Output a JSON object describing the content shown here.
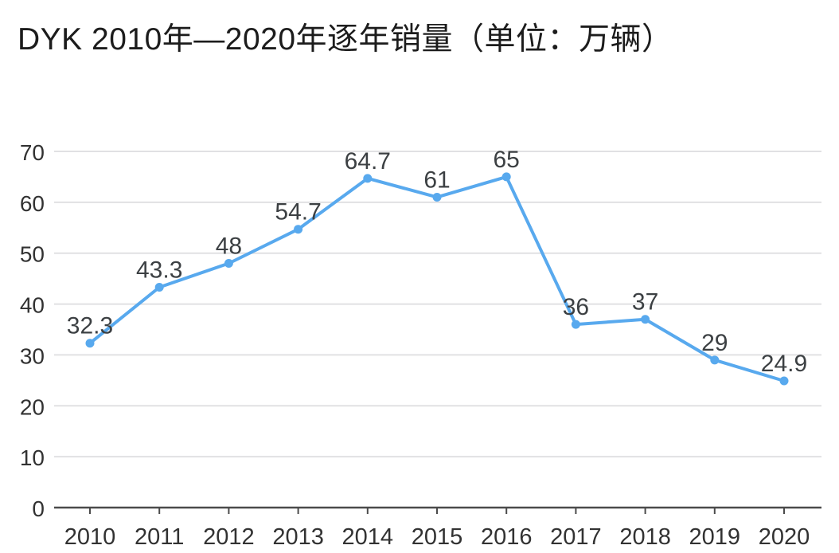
{
  "page": {
    "background_color": "#FFFFFF"
  },
  "chart_data": {
    "type": "line",
    "title": "DYK 2010年—2020年逐年销量（单位：万辆）",
    "categories": [
      "2010",
      "2011",
      "2012",
      "2013",
      "2014",
      "2015",
      "2016",
      "2017",
      "2018",
      "2019",
      "2020"
    ],
    "values": [
      32.3,
      43.3,
      48,
      54.7,
      64.7,
      61,
      65,
      36,
      37,
      29,
      24.9
    ],
    "value_labels": [
      "32.3",
      "43.3",
      "48",
      "54.7",
      "64.7",
      "61",
      "65",
      "36",
      "37",
      "29",
      "24.9"
    ],
    "xlabel": "",
    "ylabel": "",
    "ylim": [
      0,
      70
    ],
    "yticks": [
      0,
      10,
      20,
      30,
      40,
      50,
      60,
      70
    ],
    "grid": "horizontal-only",
    "legend": "none",
    "marker": "filled-circle",
    "colors": {
      "line": "#58A9EE",
      "marker": "#58A9EE",
      "gridline": "#E1E1E3",
      "axis": "#4B4B4B",
      "tick_label": "#323232",
      "value_label": "#3C4043",
      "title": "#1C1C1C",
      "background": "#FFFFFF"
    }
  }
}
